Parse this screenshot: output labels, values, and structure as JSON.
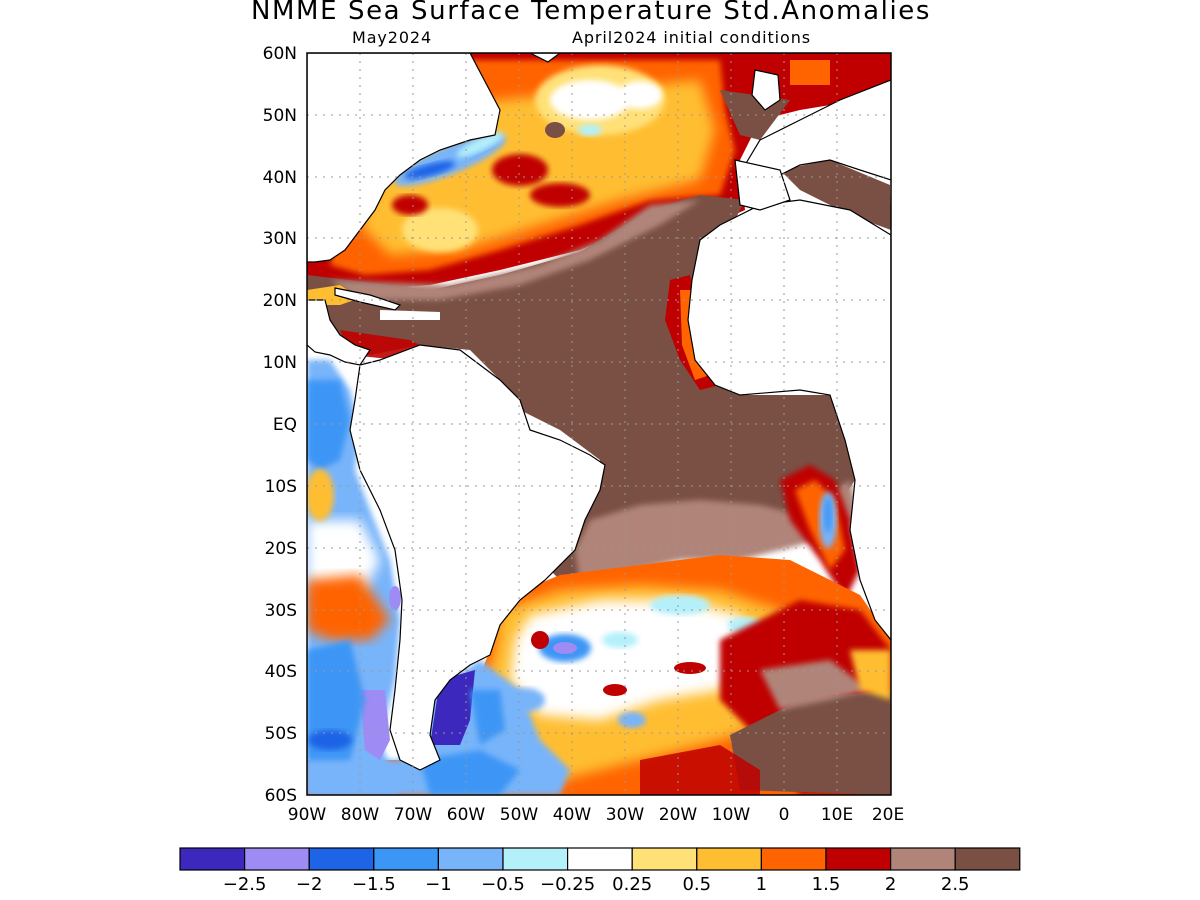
{
  "title": "NMME Sea Surface Temperature Std.Anomalies",
  "subtitle_left": "May2024",
  "subtitle_right": "April2024 initial conditions",
  "lat_labels": [
    "60N",
    "50N",
    "40N",
    "30N",
    "20N",
    "10N",
    "EQ",
    "10S",
    "20S",
    "30S",
    "40S",
    "50S",
    "60S"
  ],
  "lon_labels": [
    "90W",
    "80W",
    "70W",
    "60W",
    "50W",
    "40W",
    "30W",
    "20W",
    "10W",
    "0",
    "10E",
    "20E"
  ],
  "map_extent": {
    "lon": [
      -90,
      20
    ],
    "lat": [
      -60,
      60
    ]
  },
  "colorbar": {
    "colors": [
      "#3c28bc",
      "#9e8cf4",
      "#1e64e6",
      "#3c96f5",
      "#78b4fa",
      "#b4f0fa",
      "#ffffff",
      "#ffe178",
      "#ffbe32",
      "#ff6400",
      "#c00000",
      "#b08478",
      "#7a5044"
    ],
    "labels": [
      "-2.5",
      "-2",
      "-1.5",
      "-1",
      "-0.5",
      "-0.25",
      "0.25",
      "0.5",
      "1",
      "1.5",
      "2",
      "2.5"
    ]
  }
}
